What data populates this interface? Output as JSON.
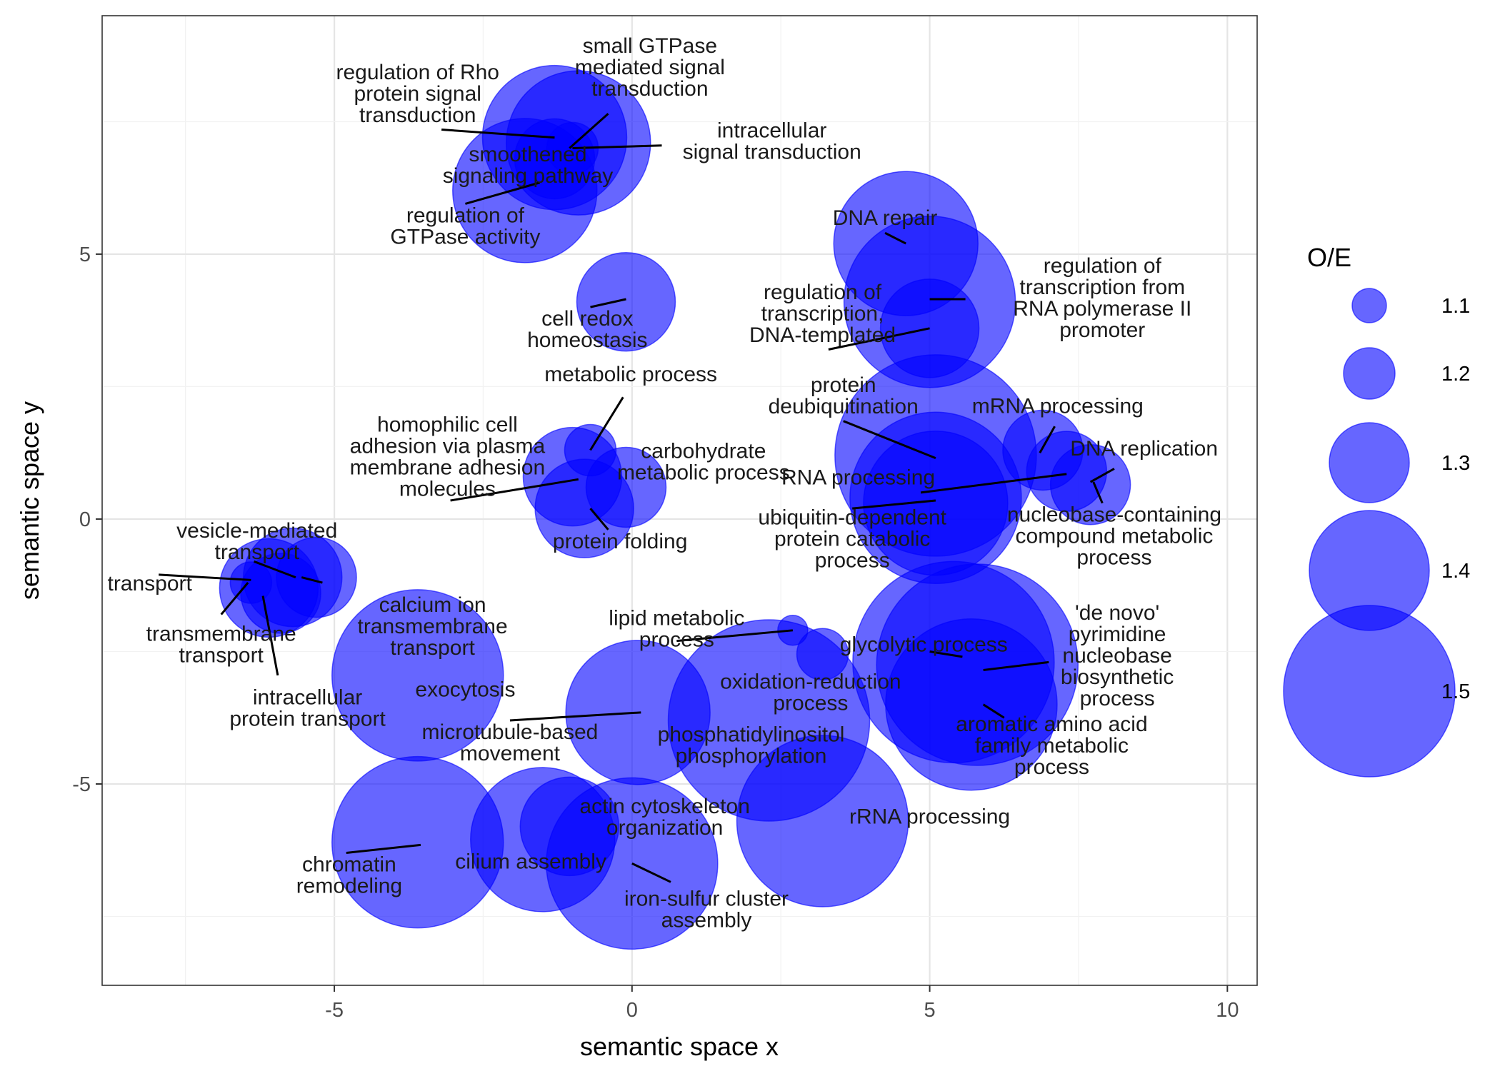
{
  "chart_data": {
    "type": "scatter",
    "xlabel": "semantic space x",
    "ylabel": "semantic space y",
    "xlim": [
      -8.9,
      10.5
    ],
    "ylim": [
      -8.8,
      9.5
    ],
    "x_ticks": [
      -5,
      0,
      5,
      10
    ],
    "y_ticks": [
      -5,
      0,
      5
    ],
    "x_tick_labels": [
      "-5",
      "0",
      "5",
      "10"
    ],
    "y_tick_labels": [
      "-5",
      "0",
      "5"
    ],
    "grid": true,
    "legend": {
      "title": "O/E",
      "placement": "right",
      "entries": [
        {
          "label": "1.1",
          "value": 1.1
        },
        {
          "label": "1.2",
          "value": 1.2
        },
        {
          "label": "1.3",
          "value": 1.3
        },
        {
          "label": "1.4",
          "value": 1.4
        },
        {
          "label": "1.5",
          "value": 1.5
        }
      ]
    },
    "color": "#0000ff",
    "points": [
      {
        "term": "regulation of Rho protein signal transduction",
        "x": -1.3,
        "y": 7.2,
        "oe": 1.45
      },
      {
        "term": "small GTPase mediated signal transduction",
        "x": -0.9,
        "y": 7.1,
        "oe": 1.45
      },
      {
        "term": "intracellular signal transduction",
        "x": -1.0,
        "y": 7.0,
        "oe": 1.2
      },
      {
        "term": "smoothened signaling pathway",
        "x": -1.3,
        "y": 6.8,
        "oe": 1.3
      },
      {
        "term": "regulation of GTPase activity",
        "x": -1.8,
        "y": 6.2,
        "oe": 1.45
      },
      {
        "term": "DNA repair",
        "x": 4.6,
        "y": 5.2,
        "oe": 1.45
      },
      {
        "term": "regulation of transcription from RNA polymerase II promoter",
        "x": 5.0,
        "y": 4.1,
        "oe": 1.5
      },
      {
        "term": "regulation of transcription, DNA-templated",
        "x": 5.0,
        "y": 3.6,
        "oe": 1.35
      },
      {
        "term": "cell redox homeostasis",
        "x": -0.1,
        "y": 4.1,
        "oe": 1.35
      },
      {
        "term": "metabolic process",
        "x": -0.7,
        "y": 1.3,
        "oe": 1.2
      },
      {
        "term": "homophilic cell adhesion via plasma membrane adhesion molecules",
        "x": -1.0,
        "y": 0.8,
        "oe": 1.35
      },
      {
        "term": "carbohydrate metabolic process",
        "x": -0.1,
        "y": 0.6,
        "oe": 1.3
      },
      {
        "term": "protein folding",
        "x": -0.8,
        "y": 0.2,
        "oe": 1.35
      },
      {
        "term": "protein deubiquitination",
        "x": 5.1,
        "y": 1.2,
        "oe": 1.55
      },
      {
        "term": "RNA processing",
        "x": 5.1,
        "y": 0.4,
        "oe": 1.5
      },
      {
        "term": "ubiquitin-dependent protein catabolic process",
        "x": 5.1,
        "y": 0.3,
        "oe": 1.45
      },
      {
        "term": "mRNA processing",
        "x": 6.9,
        "y": 1.3,
        "oe": 1.3
      },
      {
        "term": "DNA replication",
        "x": 7.3,
        "y": 0.9,
        "oe": 1.3
      },
      {
        "term": "nucleobase-containing compound metabolic process",
        "x": 7.7,
        "y": 0.65,
        "oe": 1.3
      },
      {
        "term": "transport",
        "x": -6.4,
        "y": -1.2,
        "oe": 1.15
      },
      {
        "term": "transmembrane transport",
        "x": -6.1,
        "y": -1.3,
        "oe": 1.35
      },
      {
        "term": "vesicle-mediated transport",
        "x": -5.7,
        "y": -1.1,
        "oe": 1.35
      },
      {
        "term": "intracellular protein transport",
        "x": -5.9,
        "y": -1.4,
        "oe": 1.3
      },
      {
        "term": "calcium ion transmembrane transport",
        "x": -5.3,
        "y": -1.1,
        "oe": 1.3
      },
      {
        "term": "exocytosis",
        "x": -3.6,
        "y": -2.95,
        "oe": 1.5
      },
      {
        "term": "lipid metabolic process",
        "x": 2.7,
        "y": -2.1,
        "oe": 1.05
      },
      {
        "term": "glycolytic process",
        "x": 3.2,
        "y": -2.55,
        "oe": 1.2
      },
      {
        "term": "'de novo' pyrimidine nucleobase biosynthetic process",
        "x": 5.8,
        "y": -2.75,
        "oe": 1.55
      },
      {
        "term": "aromatic amino acid family metabolic process",
        "x": 5.4,
        "y": -2.7,
        "oe": 1.55
      },
      {
        "term": "oxidation-reduction process",
        "x": 5.7,
        "y": -3.5,
        "oe": 1.5
      },
      {
        "term": "microtubule-based movement",
        "x": 0.1,
        "y": -3.65,
        "oe": 1.45
      },
      {
        "term": "phosphatidylinositol phosphorylation",
        "x": 2.3,
        "y": -3.8,
        "oe": 1.55
      },
      {
        "term": "rRNA processing",
        "x": 3.2,
        "y": -5.7,
        "oe": 1.5
      },
      {
        "term": "chromatin remodeling",
        "x": -3.6,
        "y": -6.1,
        "oe": 1.5
      },
      {
        "term": "cilium assembly",
        "x": -1.5,
        "y": -6.05,
        "oe": 1.45
      },
      {
        "term": "actin cytoskeleton organization",
        "x": -1.05,
        "y": -5.8,
        "oe": 1.35
      },
      {
        "term": "iron-sulfur cluster assembly",
        "x": 0.0,
        "y": -6.5,
        "oe": 1.5
      }
    ],
    "annotations": [
      {
        "lines": [
          "regulation of Rho",
          "protein signal",
          "transduction"
        ],
        "x": -3.6,
        "y": 8.3,
        "ax": -3.2,
        "ay": 7.35,
        "bx": -1.3,
        "by": 7.2
      },
      {
        "lines": [
          "small GTPase",
          "mediated signal",
          "transduction"
        ],
        "x": 0.3,
        "y": 8.8,
        "ax": -0.4,
        "ay": 7.65,
        "bx": -1.05,
        "by": 7.0
      },
      {
        "lines": [
          "intracellular",
          "signal transduction"
        ],
        "x": 2.35,
        "y": 7.2,
        "ax": 0.5,
        "ay": 7.05,
        "bx": -1.0,
        "by": 7.0
      },
      {
        "lines": [
          "smoothened",
          "signaling pathway"
        ],
        "x": -1.75,
        "y": 6.75,
        "ax": -1.55,
        "ay": 6.35,
        "bx": -2.8,
        "by": 5.95
      },
      {
        "lines": [
          "regulation of",
          "GTPase activity"
        ],
        "x": -2.8,
        "y": 5.6,
        "ax": null,
        "ay": null,
        "bx": null,
        "by": null
      },
      {
        "lines": [
          "DNA repair"
        ],
        "x": 4.25,
        "y": 5.55,
        "ax": 4.25,
        "ay": 5.4,
        "bx": 4.6,
        "by": 5.2
      },
      {
        "lines": [
          "regulation of",
          "transcription from",
          "RNA polymerase II",
          "promoter"
        ],
        "x": 7.9,
        "y": 4.65,
        "ax": 5.0,
        "ay": 4.15,
        "bx": 5.6,
        "by": 4.15
      },
      {
        "lines": [
          "regulation of",
          "transcription,",
          "DNA-templated"
        ],
        "x": 3.2,
        "y": 4.15,
        "ax": 3.3,
        "ay": 3.2,
        "bx": 5.0,
        "by": 3.6
      },
      {
        "lines": [
          "cell redox",
          "homeostasis"
        ],
        "x": -0.75,
        "y": 3.65,
        "ax": -0.7,
        "ay": 4.0,
        "bx": -0.1,
        "by": 4.15
      },
      {
        "lines": [
          "metabolic process"
        ],
        "x": -0.02,
        "y": 2.6,
        "ax": -0.15,
        "ay": 2.3,
        "bx": -0.7,
        "by": 1.3
      },
      {
        "lines": [
          "homophilic cell",
          "adhesion via plasma",
          "membrane adhesion",
          "molecules"
        ],
        "x": -3.1,
        "y": 1.65,
        "ax": -3.05,
        "ay": 0.35,
        "bx": -0.9,
        "by": 0.75
      },
      {
        "lines": [
          "carbohydrate",
          "metabolic process"
        ],
        "x": 1.2,
        "y": 1.15,
        "ax": null,
        "ay": null,
        "bx": null,
        "by": null
      },
      {
        "lines": [
          "protein folding"
        ],
        "x": -0.2,
        "y": -0.55,
        "ax": -0.4,
        "ay": -0.2,
        "bx": -0.7,
        "by": 0.2
      },
      {
        "lines": [
          "protein",
          "deubiquitination"
        ],
        "x": 3.55,
        "y": 2.4,
        "ax": 3.55,
        "ay": 1.85,
        "bx": 5.1,
        "by": 1.15
      },
      {
        "lines": [
          "RNA processing"
        ],
        "x": 3.8,
        "y": 0.65,
        "ax": 4.85,
        "ay": 0.5,
        "bx": 7.3,
        "by": 0.85
      },
      {
        "lines": [
          "ubiquitin-dependent",
          "protein catabolic",
          "process"
        ],
        "x": 3.7,
        "y": -0.1,
        "ax": 3.7,
        "ay": 0.2,
        "bx": 5.1,
        "by": 0.35
      },
      {
        "lines": [
          "mRNA processing"
        ],
        "x": 7.15,
        "y": 2.0,
        "ax": 7.1,
        "ay": 1.75,
        "bx": 6.85,
        "by": 1.25
      },
      {
        "lines": [
          "DNA replication"
        ],
        "x": 8.6,
        "y": 1.2,
        "ax": 8.1,
        "ay": 0.95,
        "bx": 7.7,
        "by": 0.7
      },
      {
        "lines": [
          "nucleobase-containing",
          "compound metabolic",
          "process"
        ],
        "x": 8.1,
        "y": -0.05,
        "ax": 7.9,
        "ay": 0.3,
        "bx": 7.75,
        "by": 0.7
      },
      {
        "lines": [
          "transport"
        ],
        "x": -8.1,
        "y": -1.35,
        "ax": -7.95,
        "ay": -1.05,
        "bx": -6.4,
        "by": -1.15
      },
      {
        "lines": [
          "vesicle-mediated",
          "transport"
        ],
        "x": -6.3,
        "y": -0.35,
        "ax": -6.35,
        "ay": -0.8,
        "bx": -5.65,
        "by": -1.1
      },
      {
        "lines": [
          "transmembrane",
          "transport"
        ],
        "x": -6.9,
        "y": -2.3,
        "ax": -6.9,
        "ay": -1.8,
        "bx": -6.45,
        "by": -1.2
      },
      {
        "lines": [
          "calcium ion",
          "transmembrane",
          "transport"
        ],
        "x": -3.35,
        "y": -1.75,
        "ax": -5.2,
        "ay": -1.2,
        "bx": -5.55,
        "by": -1.1
      },
      {
        "lines": [
          "intracellular",
          "protein transport"
        ],
        "x": -5.45,
        "y": -3.5,
        "ax": -5.95,
        "ay": -2.95,
        "bx": -6.2,
        "by": -1.45
      },
      {
        "lines": [
          "lipid metabolic",
          "process"
        ],
        "x": 0.75,
        "y": -2.0,
        "ax": 0.75,
        "ay": -2.3,
        "bx": 2.7,
        "by": -2.1
      },
      {
        "lines": [
          "glycolytic process"
        ],
        "x": 4.9,
        "y": -2.5,
        "ax": 5.0,
        "ay": -2.5,
        "bx": 5.55,
        "by": -2.6
      },
      {
        "lines": [
          "'de novo'",
          "pyrimidine",
          "nucleobase",
          "biosynthetic",
          "process"
        ],
        "x": 8.15,
        "y": -1.9,
        "ax": 7.0,
        "ay": -2.7,
        "bx": 5.9,
        "by": -2.85
      },
      {
        "lines": [
          "aromatic amino acid",
          "family metabolic",
          "process"
        ],
        "x": 7.05,
        "y": -4.0,
        "ax": 6.25,
        "ay": -3.75,
        "bx": 5.9,
        "by": -3.5
      },
      {
        "lines": [
          "exocytosis"
        ],
        "x": -2.8,
        "y": -3.35,
        "ax": null,
        "ay": null,
        "bx": null,
        "by": null
      },
      {
        "lines": [
          "oxidation-reduction",
          "process"
        ],
        "x": 3.0,
        "y": -3.2,
        "ax": null,
        "ay": null,
        "bx": null,
        "by": null
      },
      {
        "lines": [
          "microtubule-based",
          "movement"
        ],
        "x": -2.05,
        "y": -4.15,
        "ax": -2.05,
        "ay": -3.8,
        "bx": 0.15,
        "by": -3.65
      },
      {
        "lines": [
          "phosphatidylinositol",
          "phosphorylation"
        ],
        "x": 2.0,
        "y": -4.2,
        "ax": null,
        "ay": null,
        "bx": null,
        "by": null
      },
      {
        "lines": [
          "rRNA processing"
        ],
        "x": 5.0,
        "y": -5.75,
        "ax": null,
        "ay": null,
        "bx": null,
        "by": null
      },
      {
        "lines": [
          "actin cytoskeleton",
          "organization"
        ],
        "x": 0.55,
        "y": -5.55,
        "ax": null,
        "ay": null,
        "bx": null,
        "by": null
      },
      {
        "lines": [
          "chromatin",
          "remodeling"
        ],
        "x": -4.75,
        "y": -6.65,
        "ax": -4.8,
        "ay": -6.3,
        "bx": -3.55,
        "by": -6.15
      },
      {
        "lines": [
          "cilium assembly"
        ],
        "x": -1.7,
        "y": -6.6,
        "ax": null,
        "ay": null,
        "bx": null,
        "by": null
      },
      {
        "lines": [
          "iron-sulfur cluster",
          "assembly"
        ],
        "x": 1.25,
        "y": -7.3,
        "ax": 0.65,
        "ay": -6.85,
        "bx": 0.0,
        "by": -6.5
      }
    ]
  }
}
